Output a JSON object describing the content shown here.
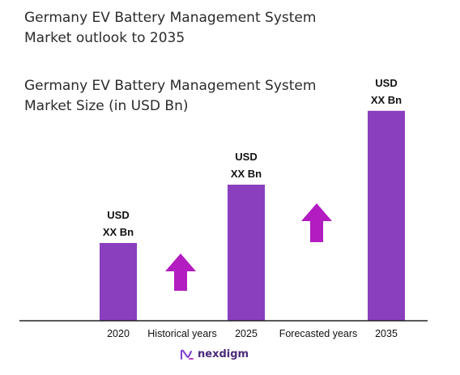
{
  "title_line1": "Germany EV Battery Management System",
  "title_line2": "Market outlook to 2035",
  "chart_data": {
    "type": "bar",
    "title": "Germany EV Battery Management System Market Size (in USD Bn)",
    "title_line1": "Germany EV Battery Management System",
    "title_line2": "Market Size (in USD Bn)",
    "categories": [
      "2020",
      "2025",
      "2035"
    ],
    "values": [
      1.0,
      1.75,
      2.7
    ],
    "value_labels": [
      [
        "USD",
        "XX Bn"
      ],
      [
        "USD",
        "XX Bn"
      ],
      [
        "USD",
        "XX Bn"
      ]
    ],
    "gap_labels": [
      "Historical years",
      "Forecasted years"
    ],
    "bar_color": "#8a3fbf",
    "arrow_color": "#b31cc0",
    "grid": false,
    "legend": "none"
  },
  "logo_text": "nexdigm"
}
